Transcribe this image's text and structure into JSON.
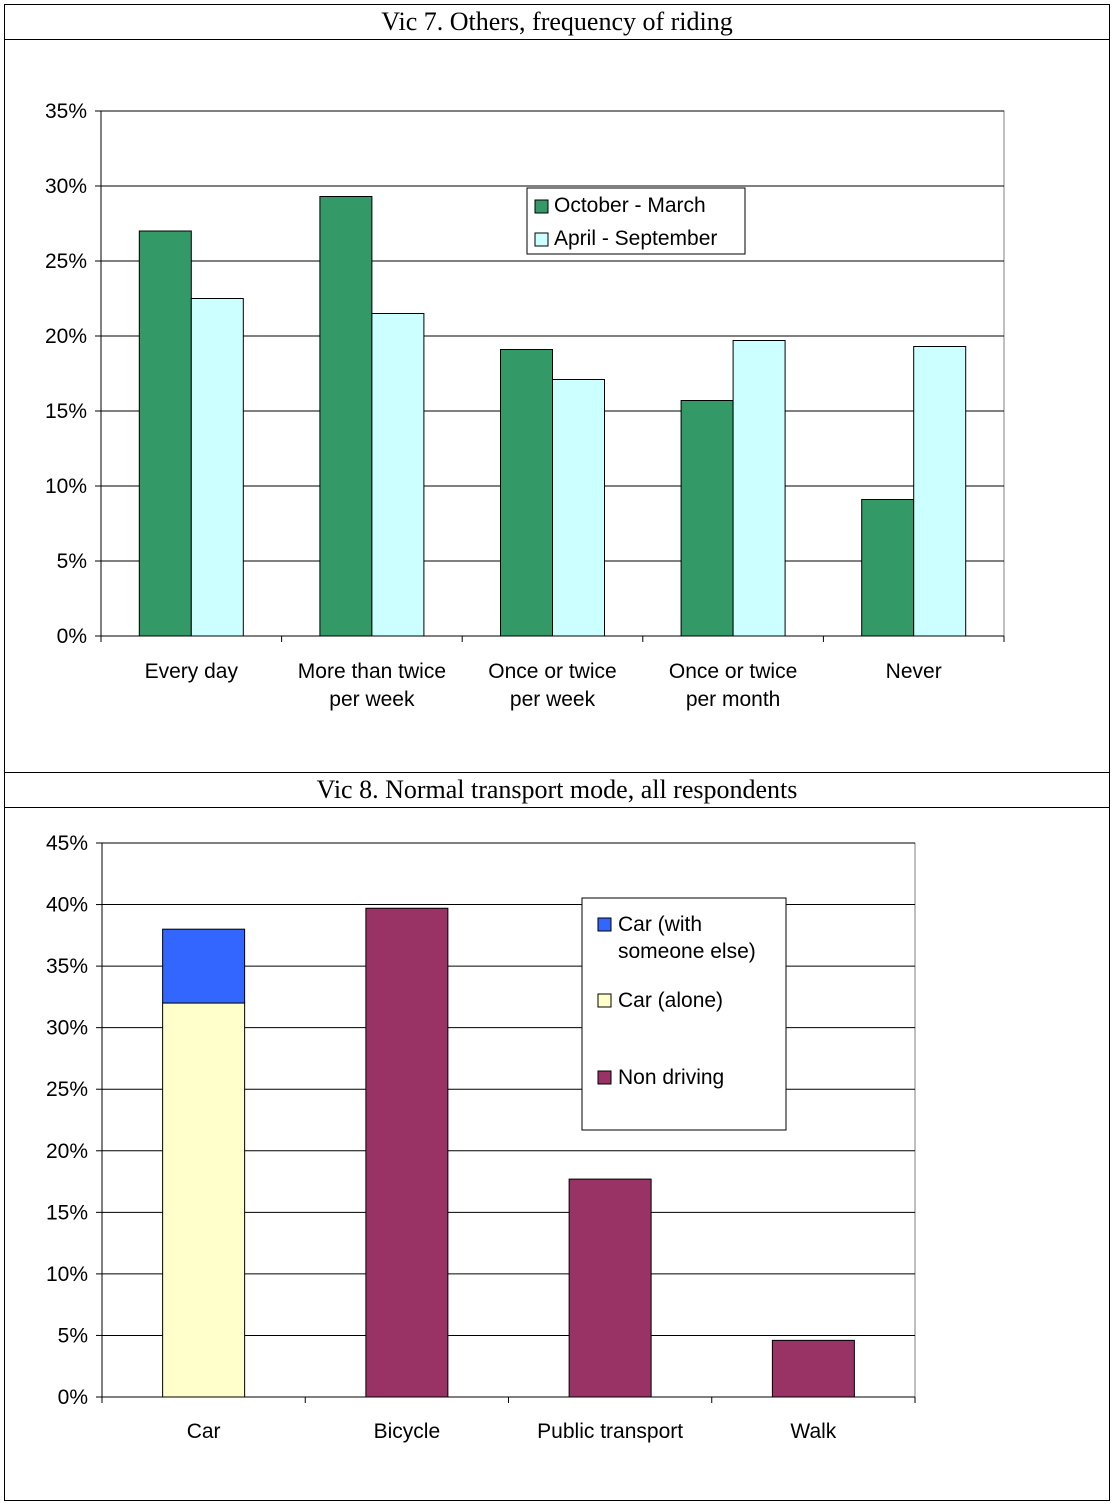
{
  "chart_data": [
    {
      "type": "bar",
      "title": "Vic 7. Others, frequency of riding",
      "categories": [
        "Every day",
        "More than twice per week",
        "Once or twice per week",
        "Once or twice per month",
        "Never"
      ],
      "category_lines": [
        [
          "Every day"
        ],
        [
          "More than twice",
          "per week"
        ],
        [
          "Once or twice",
          "per week"
        ],
        [
          "Once or twice",
          "per month"
        ],
        [
          "Never"
        ]
      ],
      "series": [
        {
          "name": "October - March",
          "values": [
            27.0,
            29.3,
            19.1,
            15.7,
            9.1
          ],
          "color": "#339966"
        },
        {
          "name": "April - September",
          "values": [
            22.5,
            21.5,
            17.1,
            19.7,
            19.3
          ],
          "color": "#ccffff"
        }
      ],
      "ylim": [
        0,
        35
      ],
      "yticks": [
        "0%",
        "5%",
        "10%",
        "15%",
        "20%",
        "25%",
        "30%",
        "35%"
      ],
      "grid": true,
      "legend_position": "top-center"
    },
    {
      "type": "bar",
      "stacked": true,
      "title": "Vic 8. Normal transport mode, all respondents",
      "categories": [
        "Car",
        "Bicycle",
        "Public transport",
        "Walk"
      ],
      "series": [
        {
          "name": "Car (alone)",
          "legend_lines": [
            "Car (alone)"
          ],
          "values": [
            32.0,
            0,
            0,
            0
          ],
          "color": "#ffffcc"
        },
        {
          "name": "Car (with someone else)",
          "legend_lines": [
            "Car (with",
            "someone else)"
          ],
          "values": [
            6.0,
            0,
            0,
            0
          ],
          "color": "#3366ff"
        },
        {
          "name": "Non driving",
          "legend_lines": [
            "Non driving"
          ],
          "values": [
            0,
            39.7,
            17.7,
            4.6
          ],
          "color": "#993366"
        }
      ],
      "ylim": [
        0,
        45
      ],
      "yticks": [
        "0%",
        "5%",
        "10%",
        "15%",
        "20%",
        "25%",
        "30%",
        "35%",
        "40%",
        "45%"
      ],
      "grid": true,
      "legend_position": "top-right"
    }
  ]
}
